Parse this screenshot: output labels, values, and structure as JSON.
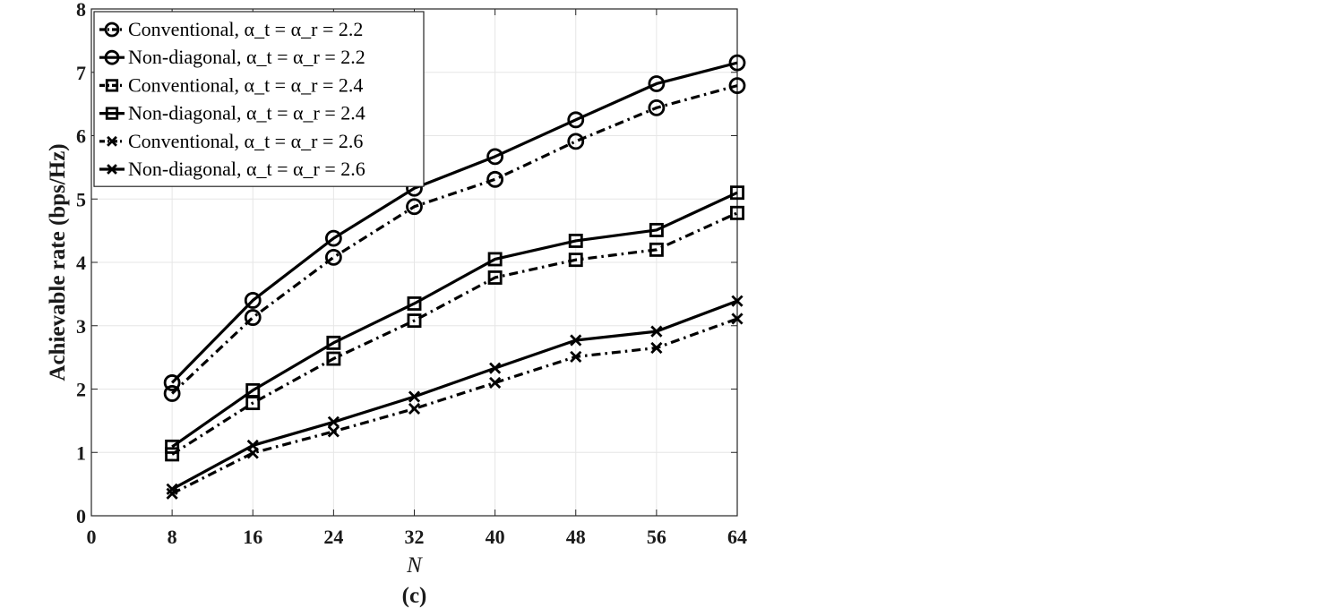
{
  "chart_data": {
    "type": "line",
    "title": "",
    "xlabel": "N",
    "ylabel": "Achievable rate (bps/Hz)",
    "caption": "(c)",
    "xlim": [
      0,
      64
    ],
    "ylim": [
      0,
      8
    ],
    "xticks": [
      0,
      8,
      16,
      24,
      32,
      40,
      48,
      56,
      64
    ],
    "yticks": [
      0,
      1,
      2,
      3,
      4,
      5,
      6,
      7,
      8
    ],
    "grid": true,
    "legend_position": "top-left",
    "x": [
      8,
      16,
      24,
      32,
      40,
      48,
      56,
      64
    ],
    "series": [
      {
        "name": "Conventional, α_t = α_r = 2.2",
        "style": "dash-dot",
        "marker": "circle",
        "values": [
          1.93,
          3.13,
          4.08,
          4.88,
          5.31,
          5.91,
          6.44,
          6.79
        ]
      },
      {
        "name": "Non-diagonal, α_t = α_r = 2.2",
        "style": "solid",
        "marker": "circle",
        "values": [
          2.1,
          3.4,
          4.38,
          5.17,
          5.67,
          6.25,
          6.82,
          7.15
        ]
      },
      {
        "name": "Conventional, α_t = α_r = 2.4",
        "style": "dash-dot",
        "marker": "square",
        "values": [
          0.97,
          1.78,
          2.48,
          3.08,
          3.76,
          4.04,
          4.2,
          4.78
        ]
      },
      {
        "name": "Non-diagonal, α_t = α_r = 2.4",
        "style": "solid",
        "marker": "square",
        "values": [
          1.09,
          1.98,
          2.73,
          3.35,
          4.05,
          4.34,
          4.51,
          5.1
        ]
      },
      {
        "name": "Conventional, α_t = α_r = 2.6",
        "style": "dash-dot",
        "marker": "x",
        "values": [
          0.35,
          0.99,
          1.33,
          1.69,
          2.1,
          2.51,
          2.65,
          3.11
        ]
      },
      {
        "name": "Non-diagonal, α_t = α_r = 2.6",
        "style": "solid",
        "marker": "x",
        "values": [
          0.42,
          1.11,
          1.48,
          1.88,
          2.33,
          2.77,
          2.91,
          3.39
        ]
      }
    ],
    "line_color": "#000000",
    "grid_color": "#e6e6e6"
  }
}
